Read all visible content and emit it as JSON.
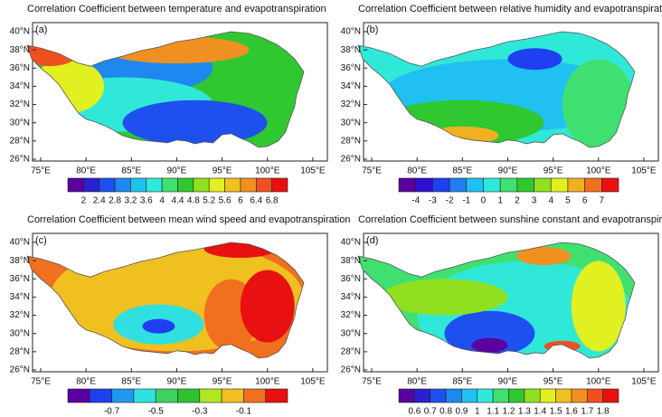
{
  "panels": [
    {
      "title": "Correlation Coefficient between temperature and evapotranspiration",
      "label": "(a)",
      "colorbar": {
        "labels": [
          2,
          2.4,
          2.8,
          3.2,
          3.6,
          4,
          4.4,
          4.8,
          5.2,
          5.6,
          6,
          6.4,
          6.8
        ],
        "colors": [
          "#5a00a0",
          "#2b1fd0",
          "#1e50f0",
          "#1e88f0",
          "#20c0f0",
          "#30e8d8",
          "#40e070",
          "#30c830",
          "#90e020",
          "#e0f020",
          "#f0c020",
          "#f09020",
          "#f05020",
          "#e81010"
        ]
      }
    },
    {
      "title": "Correlation Coefficient between relative humidity and evapotranspiration",
      "label": "(b)",
      "colorbar": {
        "labels": [
          -4,
          -3,
          -2,
          -1,
          0,
          1,
          2,
          3,
          4,
          5,
          6,
          7
        ],
        "colors": [
          "#5a00a0",
          "#3010d0",
          "#1e40f0",
          "#1e80f0",
          "#20c0f0",
          "#30e8d8",
          "#40e070",
          "#30c830",
          "#90e020",
          "#e0f020",
          "#f0b020",
          "#f07020",
          "#e81010"
        ]
      }
    },
    {
      "title": "Correlation Coefficient between mean wind speed and evapotranspiration",
      "label": "(c)",
      "colorbar": {
        "labels": [
          -0.7,
          -0.5,
          -0.3,
          -0.1
        ],
        "colors": [
          "#5a00a0",
          "#1e40f0",
          "#1e98f0",
          "#30e0e0",
          "#40d060",
          "#30c030",
          "#b0e820",
          "#f0c020",
          "#f07020",
          "#e81010"
        ]
      }
    },
    {
      "title": "Correlation Coefficient between sunshine constant and evapotranspiration",
      "label": "(d)",
      "colorbar": {
        "labels": [
          0.6,
          0.7,
          0.8,
          0.9,
          1,
          1.1,
          1.2,
          1.3,
          1.4,
          1.5,
          1.6,
          1.7,
          1.8
        ],
        "colors": [
          "#5a00a0",
          "#2b1fd0",
          "#1e50f0",
          "#1e88f0",
          "#20c0f0",
          "#30e8d8",
          "#40e070",
          "#30c830",
          "#90e020",
          "#e0f020",
          "#f0c020",
          "#f09020",
          "#f05020",
          "#e81010"
        ]
      }
    }
  ],
  "lon_ticks": [
    "75°E",
    "80°E",
    "85°E",
    "90°E",
    "95°E",
    "100°E",
    "105°E"
  ],
  "lat_ticks": [
    "40°N",
    "38°N",
    "36°N",
    "34°N",
    "32°N",
    "30°N",
    "28°N",
    "26°N"
  ]
}
